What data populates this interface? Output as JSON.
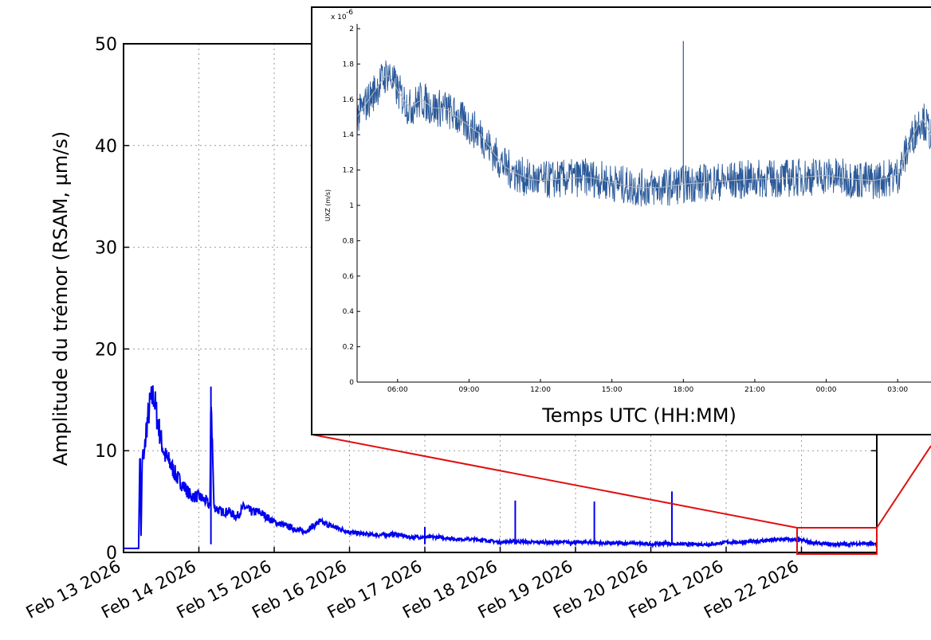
{
  "chart_data": [
    {
      "type": "line",
      "ylabel": "Amplitude du trémor (RSAM, µm/s)",
      "xlabel": "",
      "x_ticks": [
        "Feb 13 2026",
        "Feb 14 2026",
        "Feb 15 2026",
        "Feb 16 2026",
        "Feb 17 2026",
        "Feb 18 2026",
        "Feb 19 2026",
        "Feb 20 2026",
        "Feb 21 2026",
        "Feb 22 2026"
      ],
      "y_ticks": [
        0,
        10,
        20,
        30,
        40,
        50
      ],
      "xlim": [
        "Feb 13 2026",
        "Feb 23 2026"
      ],
      "ylim": [
        0,
        50
      ],
      "grid": true,
      "series": [
        {
          "color": "#0000ee",
          "x_days": [
            0,
            0.2,
            0.22,
            0.23,
            0.25,
            0.27,
            0.3,
            0.35,
            0.4,
            0.45,
            0.5,
            0.55,
            0.6,
            0.7,
            0.8,
            0.9,
            1.0,
            1.1,
            1.15,
            1.16,
            1.2,
            1.3,
            1.4,
            1.5,
            1.6,
            1.7,
            1.8,
            1.9,
            2.0,
            2.2,
            2.4,
            2.6,
            2.8,
            3.0,
            3.2,
            3.4,
            3.6,
            3.8,
            4.0,
            4.2,
            4.4,
            4.6,
            4.8,
            5.0,
            5.2,
            5.4,
            5.6,
            5.8,
            6.0,
            6.2,
            6.4,
            6.6,
            6.8,
            7.0,
            7.2,
            7.4,
            7.6,
            7.8,
            8.0,
            8.2,
            8.4,
            8.6,
            8.8,
            9.0,
            9.2,
            9.4,
            9.6,
            9.8,
            10.0
          ],
          "values": [
            0.4,
            0.4,
            11.5,
            1.0,
            10.0,
            9.0,
            12.0,
            14.5,
            15.5,
            13.0,
            11.0,
            9.5,
            9.0,
            7.5,
            6.5,
            5.5,
            5.5,
            5.0,
            4.5,
            16.3,
            4.5,
            4.0,
            4.0,
            3.5,
            4.5,
            4.0,
            4.0,
            3.5,
            3.0,
            2.5,
            2.0,
            3.0,
            2.5,
            2.0,
            1.8,
            1.7,
            1.8,
            1.5,
            1.5,
            1.5,
            1.3,
            1.3,
            1.2,
            1.0,
            1.1,
            1.0,
            1.0,
            1.0,
            1.0,
            1.0,
            0.9,
            0.9,
            0.9,
            0.8,
            0.9,
            0.8,
            0.8,
            0.8,
            1.0,
            1.0,
            1.1,
            1.2,
            1.3,
            1.2,
            0.9,
            0.8,
            0.8,
            0.9,
            0.8
          ]
        }
      ],
      "spikes_days": [
        1.16,
        4.0,
        5.2,
        6.25,
        7.28
      ],
      "spikes_values": [
        16.3,
        2.5,
        5.1,
        5.0,
        6.0
      ]
    },
    {
      "type": "line",
      "title": "",
      "xlabel": "Temps  UTC (HH:MM)",
      "ylabel": "UXZ (m/s)",
      "y_scale_label": "x 10",
      "y_scale_exponent": "-6",
      "x_ticks": [
        "06:00",
        "09:00",
        "12:00",
        "15:00",
        "18:00",
        "21:00",
        "00:00",
        "03:00"
      ],
      "y_ticks": [
        "0",
        "0.2",
        "0.4",
        "0.6",
        "0.8",
        "1",
        "1.2",
        "1.4",
        "1.6",
        "1.8",
        "2"
      ],
      "xlim_hours": [
        4.3,
        28.4
      ],
      "ylim": [
        0,
        2.05
      ],
      "grid": false,
      "series": [
        {
          "color": "#2b5a9a",
          "x_hours": [
            4.3,
            4.8,
            5.3,
            5.6,
            6.0,
            6.5,
            7.0,
            7.5,
            8.0,
            8.5,
            9.0,
            9.5,
            10.0,
            10.5,
            11.0,
            11.5,
            12.0,
            13.0,
            14.0,
            15.0,
            16.0,
            17.0,
            18.0,
            19.0,
            20.0,
            21.0,
            22.0,
            23.0,
            24.0,
            25.0,
            26.0,
            27.0,
            27.5,
            28.0,
            28.4
          ],
          "values": [
            1.5,
            1.6,
            1.7,
            1.75,
            1.65,
            1.55,
            1.6,
            1.55,
            1.55,
            1.5,
            1.45,
            1.4,
            1.3,
            1.22,
            1.18,
            1.15,
            1.14,
            1.15,
            1.16,
            1.13,
            1.1,
            1.1,
            1.12,
            1.13,
            1.14,
            1.15,
            1.15,
            1.16,
            1.17,
            1.15,
            1.14,
            1.17,
            1.35,
            1.5,
            1.4
          ]
        }
      ],
      "spike_hours": 18.0,
      "spike_value": 1.93
    }
  ]
}
